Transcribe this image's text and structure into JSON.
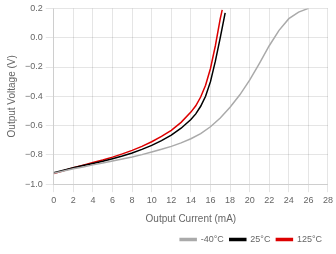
{
  "chart_data": {
    "type": "line",
    "xlabel": "Output Current (mA)",
    "ylabel": "Output Voltage (V)",
    "xlim": [
      0,
      28
    ],
    "ylim": [
      -1.0,
      0.2
    ],
    "xticks": [
      0,
      2,
      4,
      6,
      8,
      10,
      12,
      14,
      16,
      18,
      20,
      22,
      24,
      26,
      28
    ],
    "yticks": [
      {
        "value": -1.0,
        "label": "−1.0"
      },
      {
        "value": -0.8,
        "label": "−0.8"
      },
      {
        "value": -0.6,
        "label": "−0.6"
      },
      {
        "value": -0.4,
        "label": "−0.4"
      },
      {
        "value": -0.2,
        "label": "−0.2"
      },
      {
        "value": 0.0,
        "label": "0.0"
      },
      {
        "value": 0.2,
        "label": "0.2"
      }
    ],
    "grid": true,
    "legend": "lower right",
    "series": [
      {
        "name": "-40°C",
        "color": "#aaaaaa",
        "x": [
          0,
          1,
          2,
          3,
          4,
          5,
          6,
          7,
          8,
          9,
          10,
          11,
          12,
          13,
          14,
          15,
          16,
          17,
          18,
          19,
          20,
          21,
          22,
          23,
          24,
          25,
          26
        ],
        "values": [
          -0.925,
          -0.91,
          -0.895,
          -0.882,
          -0.868,
          -0.855,
          -0.842,
          -0.828,
          -0.814,
          -0.798,
          -0.78,
          -0.762,
          -0.742,
          -0.718,
          -0.69,
          -0.655,
          -0.608,
          -0.548,
          -0.475,
          -0.39,
          -0.29,
          -0.175,
          -0.055,
          0.05,
          0.13,
          0.175,
          0.2
        ]
      },
      {
        "name": "25°C",
        "color": "#000000",
        "x": [
          0,
          1,
          2,
          3,
          4,
          5,
          6,
          7,
          8,
          9,
          10,
          11,
          12,
          13,
          14,
          14.5,
          15,
          15.5,
          16,
          16.5,
          17,
          17.5
        ],
        "values": [
          -0.922,
          -0.905,
          -0.888,
          -0.872,
          -0.858,
          -0.843,
          -0.826,
          -0.808,
          -0.787,
          -0.762,
          -0.735,
          -0.703,
          -0.665,
          -0.618,
          -0.558,
          -0.52,
          -0.468,
          -0.4,
          -0.3,
          -0.16,
          0.0,
          0.17
        ]
      },
      {
        "name": "125°C",
        "color": "#dd0000",
        "x": [
          0,
          1,
          2,
          3,
          4,
          5,
          6,
          7,
          8,
          9,
          10,
          11,
          12,
          13,
          14,
          14.5,
          15,
          15.5,
          16,
          16.5,
          17,
          17.2
        ],
        "values": [
          -0.928,
          -0.908,
          -0.888,
          -0.87,
          -0.852,
          -0.835,
          -0.815,
          -0.793,
          -0.769,
          -0.742,
          -0.71,
          -0.674,
          -0.632,
          -0.578,
          -0.508,
          -0.465,
          -0.405,
          -0.325,
          -0.21,
          -0.055,
          0.13,
          0.19
        ]
      }
    ]
  }
}
